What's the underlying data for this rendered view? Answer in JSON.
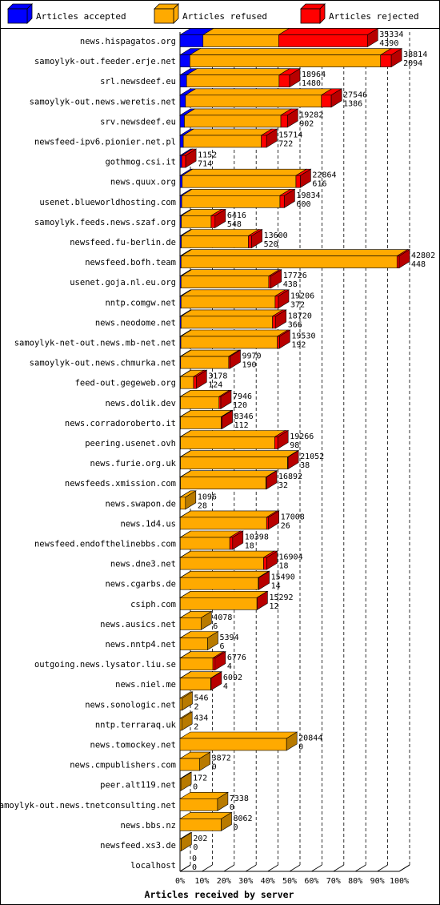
{
  "chart_data": {
    "type": "bar",
    "orientation": "horizontal",
    "stacked": true,
    "xlabel": "Articles received by server",
    "xlim": [
      0,
      100
    ],
    "xticks": [
      "0%",
      "10%",
      "20%",
      "30%",
      "40%",
      "50%",
      "60%",
      "70%",
      "80%",
      "90%",
      "100%"
    ],
    "grid": "vertical dashed",
    "legend_position": "top",
    "legend": [
      {
        "name": "Articles accepted",
        "color": "#0000ff"
      },
      {
        "name": "Articles refused",
        "color": "#ffaa00"
      },
      {
        "name": "Articles rejected",
        "color": "#ff0000"
      }
    ],
    "rows": [
      {
        "name": "news.hispagatos.org",
        "label_top": "35334",
        "label_bottom": "4390",
        "accepted": 10.5,
        "refused": 34.5,
        "rejected": 40.5
      },
      {
        "name": "samoylyk-out.feeder.erje.net",
        "label_top": "38814",
        "label_bottom": "2094",
        "accepted": 4.5,
        "refused": 87.0,
        "rejected": 4.9
      },
      {
        "name": "srl.newsdeef.eu",
        "label_top": "18964",
        "label_bottom": "1480",
        "accepted": 3.0,
        "refused": 42.2,
        "rejected": 4.8
      },
      {
        "name": "samoylyk-out.news.weretis.net",
        "label_top": "27546",
        "label_bottom": "1386",
        "accepted": 2.5,
        "refused": 62.0,
        "rejected": 4.5
      },
      {
        "name": "srv.newsdeef.eu",
        "label_top": "19282",
        "label_bottom": "902",
        "accepted": 2.0,
        "refused": 44.0,
        "rejected": 3.0
      },
      {
        "name": "newsfeed-ipv6.pionier.net.pl",
        "label_top": "15714",
        "label_bottom": "722",
        "accepted": 1.5,
        "refused": 35.6,
        "rejected": 2.4
      },
      {
        "name": "gothmog.csi.it",
        "label_top": "1152",
        "label_bottom": "714",
        "accepted": 0.8,
        "refused": 0.0,
        "rejected": 1.8
      },
      {
        "name": "news.quux.org",
        "label_top": "22864",
        "label_bottom": "616",
        "accepted": 1.0,
        "refused": 51.9,
        "rejected": 2.0
      },
      {
        "name": "usenet.blueworldhosting.com",
        "label_top": "19834",
        "label_bottom": "600",
        "accepted": 0.8,
        "refused": 44.8,
        "rejected": 2.0
      },
      {
        "name": "samoylyk.feeds.news.szaf.org",
        "label_top": "6416",
        "label_bottom": "548",
        "accepted": 0.6,
        "refused": 13.6,
        "rejected": 1.8
      },
      {
        "name": "newsfeed.fu-berlin.de",
        "label_top": "13600",
        "label_bottom": "520",
        "accepted": 0.6,
        "refused": 30.6,
        "rejected": 1.5
      },
      {
        "name": "newsfeed.bofh.team",
        "label_top": "42802",
        "label_bottom": "448",
        "accepted": 0.5,
        "refused": 98.5,
        "rejected": 1.0
      },
      {
        "name": "usenet.goja.nl.eu.org",
        "label_top": "17726",
        "label_bottom": "438",
        "accepted": 0.5,
        "refused": 40.0,
        "rejected": 1.0
      },
      {
        "name": "nntp.comgw.net",
        "label_top": "19206",
        "label_bottom": "372",
        "accepted": 0.5,
        "refused": 42.9,
        "rejected": 1.5
      },
      {
        "name": "news.neodome.net",
        "label_top": "18720",
        "label_bottom": "366",
        "accepted": 0.5,
        "refused": 41.7,
        "rejected": 1.5
      },
      {
        "name": "samoylyk-net-out.news.mb-net.net",
        "label_top": "19530",
        "label_bottom": "192",
        "accepted": 0.4,
        "refused": 44.0,
        "rejected": 1.0
      },
      {
        "name": "samoylyk-out.news.chmurka.net",
        "label_top": "9970",
        "label_bottom": "190",
        "accepted": 0.3,
        "refused": 21.9,
        "rejected": 0.6
      },
      {
        "name": "feed-out.gegeweb.org",
        "label_top": "3178",
        "label_bottom": "124",
        "accepted": 0.2,
        "refused": 6.0,
        "rejected": 1.2
      },
      {
        "name": "news.dolik.dev",
        "label_top": "7946",
        "label_bottom": "120",
        "accepted": 0.2,
        "refused": 17.6,
        "rejected": 0.8
      },
      {
        "name": "news.corradoroberto.it",
        "label_top": "8346",
        "label_bottom": "112",
        "accepted": 0.2,
        "refused": 18.6,
        "rejected": 0.4
      },
      {
        "name": "peering.usenet.ovh",
        "label_top": "19266",
        "label_bottom": "98",
        "accepted": 0.2,
        "refused": 43.0,
        "rejected": 1.4
      },
      {
        "name": "news.furie.org.uk",
        "label_top": "21052",
        "label_bottom": "38",
        "accepted": 0.2,
        "refused": 48.9,
        "rejected": 0.2
      },
      {
        "name": "newsfeeds.xmission.com",
        "label_top": "16892",
        "label_bottom": "32",
        "accepted": 0.2,
        "refused": 39.0,
        "rejected": 0.2
      },
      {
        "name": "news.swapon.de",
        "label_top": "1096",
        "label_bottom": "28",
        "accepted": 0.1,
        "refused": 2.4,
        "rejected": 0.0
      },
      {
        "name": "news.1d4.us",
        "label_top": "17008",
        "label_bottom": "26",
        "accepted": 0.1,
        "refused": 39.4,
        "rejected": 0.9
      },
      {
        "name": "newsfeed.endofthelinebbs.com",
        "label_top": "10398",
        "label_bottom": "18",
        "accepted": 0.1,
        "refused": 22.6,
        "rejected": 1.3
      },
      {
        "name": "news.dne3.net",
        "label_top": "16904",
        "label_bottom": "18",
        "accepted": 0.1,
        "refused": 38.0,
        "rejected": 1.5
      },
      {
        "name": "news.cgarbs.de",
        "label_top": "15490",
        "label_bottom": "14",
        "accepted": 0.1,
        "refused": 35.6,
        "rejected": 0.3
      },
      {
        "name": "csiph.com",
        "label_top": "15292",
        "label_bottom": "12",
        "accepted": 0.1,
        "refused": 35.0,
        "rejected": 0.1
      },
      {
        "name": "news.ausics.net",
        "label_top": "4078",
        "label_bottom": "6",
        "accepted": 0.1,
        "refused": 9.5,
        "rejected": 0.0
      },
      {
        "name": "news.nntp4.net",
        "label_top": "5394",
        "label_bottom": "6",
        "accepted": 0.1,
        "refused": 12.5,
        "rejected": 0.0
      },
      {
        "name": "outgoing.news.lysator.liu.se",
        "label_top": "6776",
        "label_bottom": "4",
        "accepted": 0.1,
        "refused": 14.9,
        "rejected": 1.0
      },
      {
        "name": "news.niel.me",
        "label_top": "6092",
        "label_bottom": "4",
        "accepted": 0.1,
        "refused": 13.9,
        "rejected": 0.2
      },
      {
        "name": "news.sonologic.net",
        "label_top": "546",
        "label_bottom": "2",
        "accepted": 0.0,
        "refused": 0.9,
        "rejected": 0.0
      },
      {
        "name": "nntp.terraraq.uk",
        "label_top": "434",
        "label_bottom": "2",
        "accepted": 0.0,
        "refused": 0.8,
        "rejected": 0.0
      },
      {
        "name": "news.tomockey.net",
        "label_top": "20844",
        "label_bottom": "0",
        "accepted": 0.0,
        "refused": 48.6,
        "rejected": 0.0
      },
      {
        "name": "news.cmpublishers.com",
        "label_top": "3872",
        "label_bottom": "0",
        "accepted": 0.0,
        "refused": 9.0,
        "rejected": 0.0
      },
      {
        "name": "peer.alt119.net",
        "label_top": "172",
        "label_bottom": "0",
        "accepted": 0.0,
        "refused": 0.4,
        "rejected": 0.0
      },
      {
        "name": "samoylyk-out.news.tnetconsulting.net",
        "label_top": "7338",
        "label_bottom": "0",
        "accepted": 0.0,
        "refused": 17.1,
        "rejected": 0.0
      },
      {
        "name": "news.bbs.nz",
        "label_top": "8062",
        "label_bottom": "0",
        "accepted": 0.0,
        "refused": 18.8,
        "rejected": 0.0
      },
      {
        "name": "newsfeed.xs3.de",
        "label_top": "202",
        "label_bottom": "0",
        "accepted": 0.0,
        "refused": 0.5,
        "rejected": 0.0
      },
      {
        "name": "localhost",
        "label_top": "0",
        "label_bottom": "0",
        "accepted": 0.0,
        "refused": 0.0,
        "rejected": 0.0
      }
    ]
  }
}
